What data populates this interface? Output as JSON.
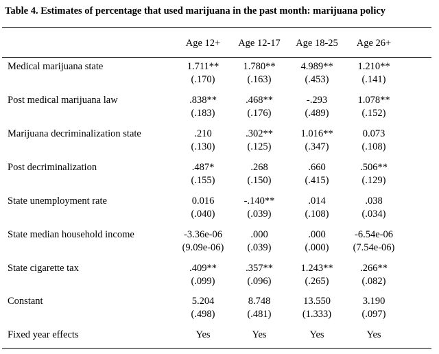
{
  "title": "Table 4. Estimates of percentage that used marijuana in the past month: marijuana policy",
  "columns": [
    "Age 12+",
    "Age 12-17",
    "Age 18-25",
    "Age 26+"
  ],
  "rows": [
    {
      "label": "Medical marijuana state",
      "est": [
        "1.711**",
        "1.780**",
        "4.989**",
        "1.210**"
      ],
      "se": [
        "(.170)",
        "(.163)",
        "(.453)",
        "(.141)"
      ]
    },
    {
      "label": "Post medical marijuana law",
      "est": [
        ".838**",
        ".468**",
        "-.293",
        "1.078**"
      ],
      "se": [
        "(.183)",
        "(.176)",
        "(.489)",
        "(.152)"
      ]
    },
    {
      "label": "Marijuana decriminalization state",
      "est": [
        ".210",
        ".302**",
        "1.016**",
        "0.073"
      ],
      "se": [
        "(.130)",
        "(.125)",
        "(.347)",
        "(.108)"
      ]
    },
    {
      "label": "Post decriminalization",
      "est": [
        ".487*",
        ".268",
        ".660",
        ".506**"
      ],
      "se": [
        "(.155)",
        "(.150)",
        "(.415)",
        "(.129)"
      ]
    },
    {
      "label": "State unemployment rate",
      "est": [
        "0.016",
        "-.140**",
        ".014",
        ".038"
      ],
      "se": [
        "(.040)",
        "(.039)",
        "(.108)",
        "(.034)"
      ]
    },
    {
      "label": "State median household income",
      "est": [
        "-3.36e-06",
        ".000",
        ".000",
        "-6.54e-06"
      ],
      "se": [
        "(9.09e-06)",
        "(.039)",
        "(.000)",
        "(7.54e-06)"
      ]
    },
    {
      "label": "State cigarette tax",
      "est": [
        ".409**",
        ".357**",
        "1.243**",
        ".266**"
      ],
      "se": [
        "(.099)",
        "(.096)",
        "(.265)",
        "(.082)"
      ]
    },
    {
      "label": "Constant",
      "est": [
        "5.204",
        "8.748",
        "13.550",
        "3.190"
      ],
      "se": [
        "(.498)",
        "(.481)",
        "(1.333)",
        "(.097)"
      ]
    },
    {
      "label": "Fixed year effects",
      "est": [
        "Yes",
        "Yes",
        "Yes",
        "Yes"
      ],
      "se": []
    }
  ]
}
